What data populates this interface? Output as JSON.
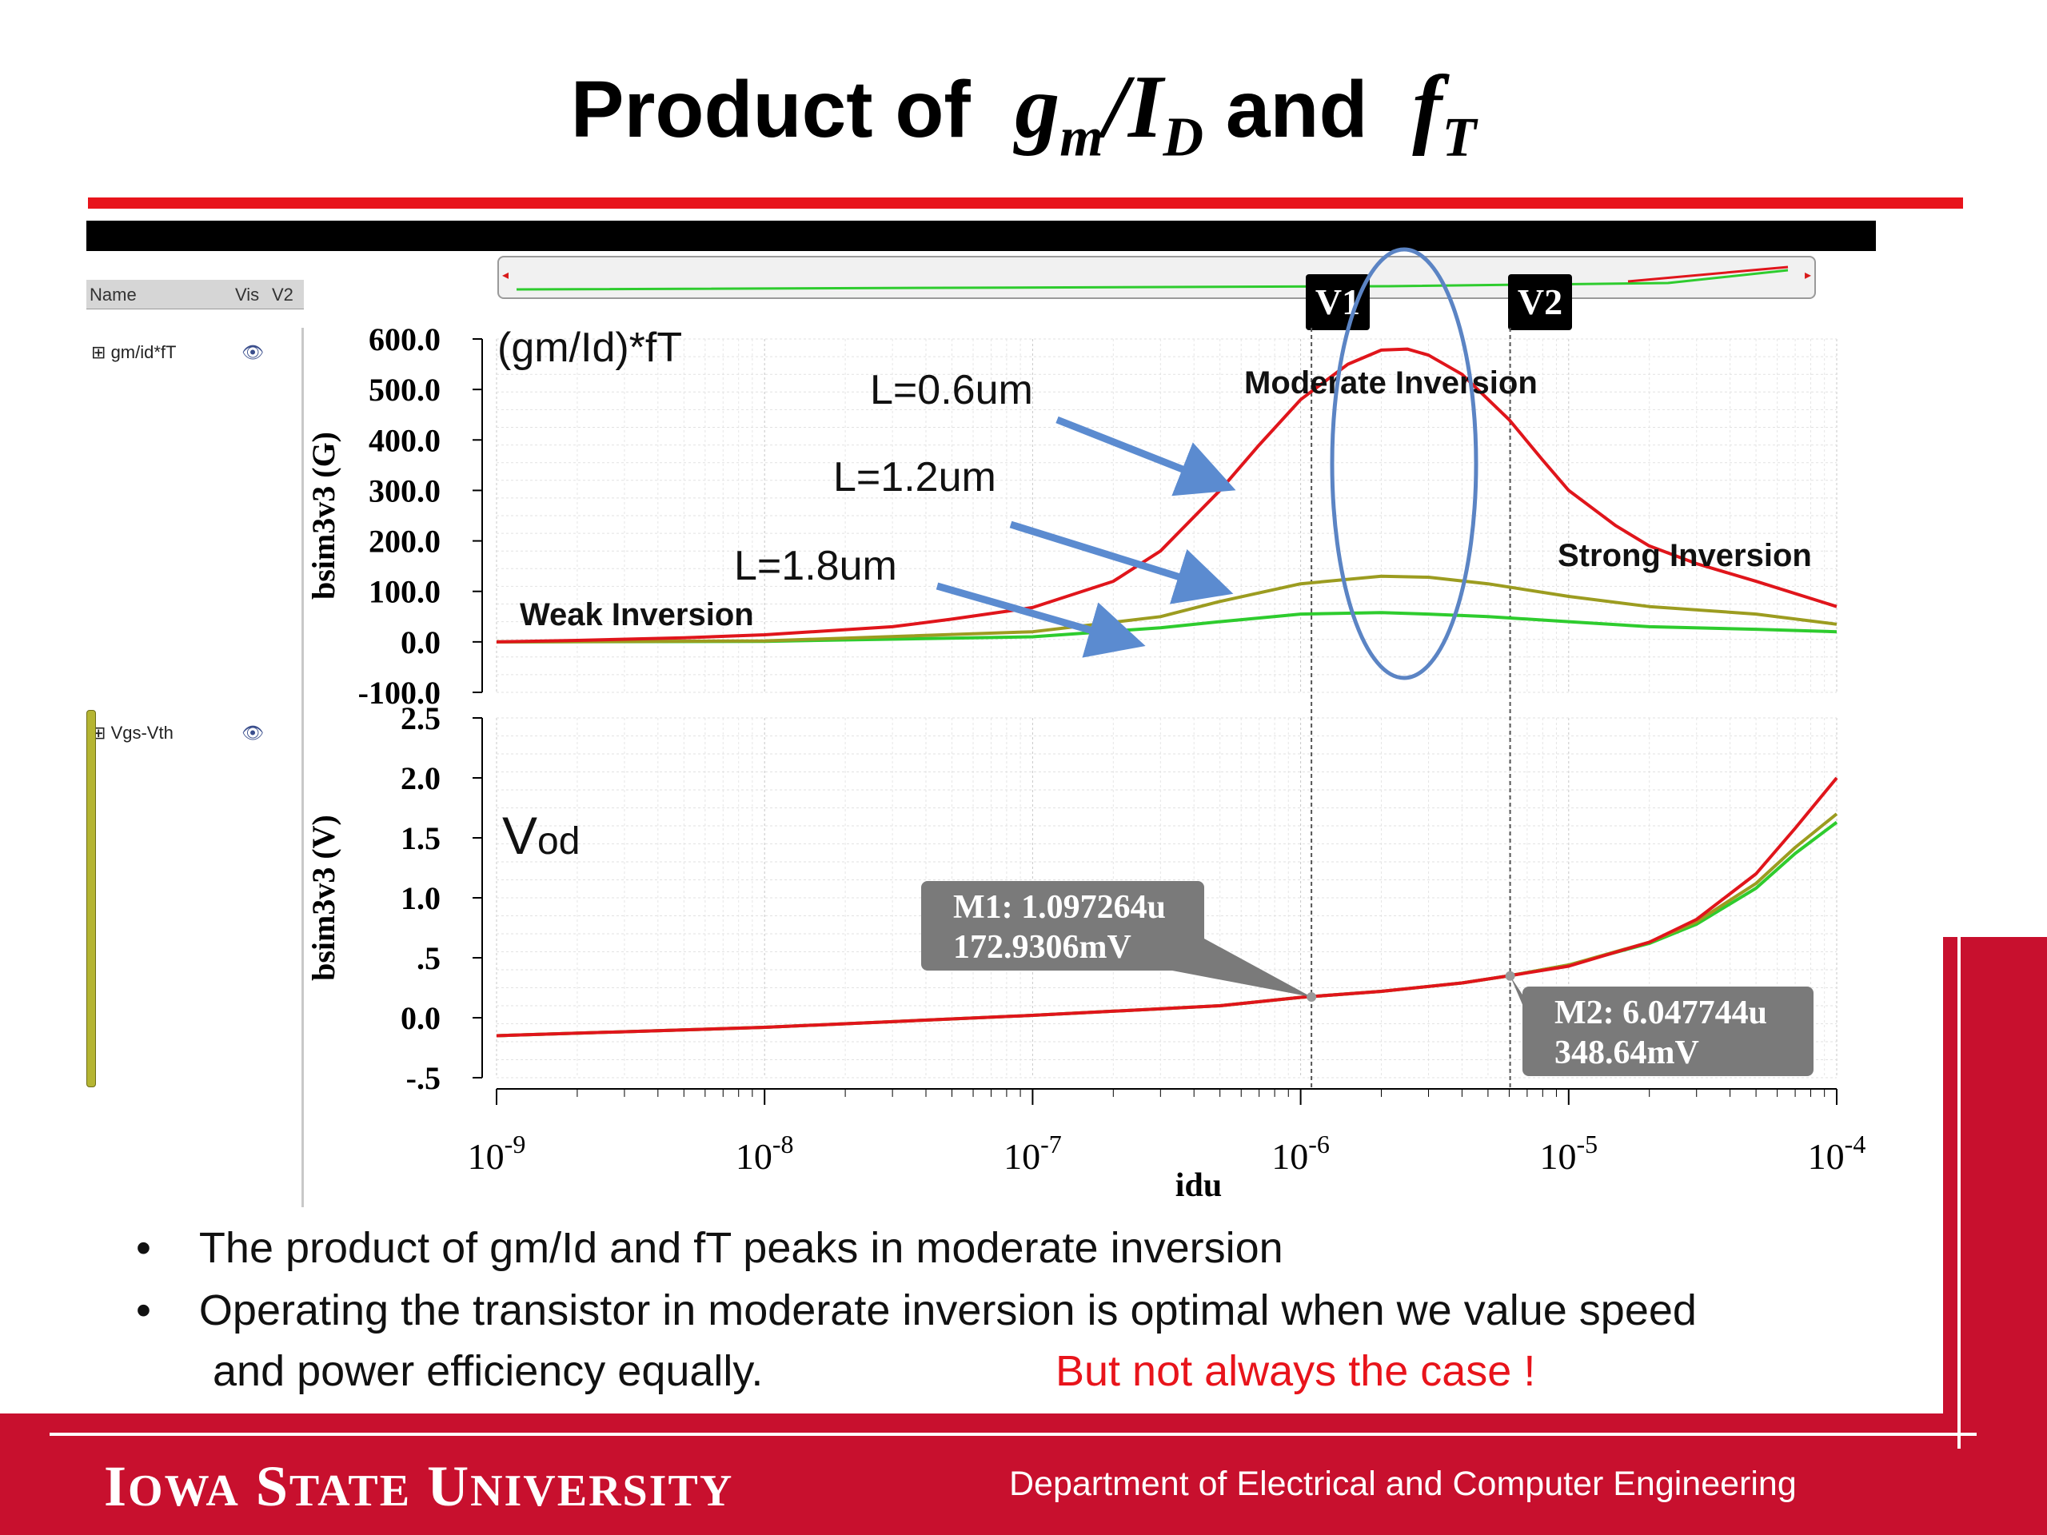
{
  "slide": {
    "title_prefix": "Product of",
    "title_gm_base": "g",
    "title_gm_sub": "m",
    "title_slash": "/",
    "title_id_base": "I",
    "title_id_sub": "D",
    "title_and": "and",
    "title_ft_base": "f",
    "title_ft_sub": "T"
  },
  "tool": {
    "header_name": "Name",
    "header_vis": "Vis",
    "header_v2": "V2",
    "signal_top": "gm/id*fT",
    "signal_bottom": "Vgs-Vth",
    "marker_v1": "V1",
    "marker_v2": "V2"
  },
  "chart_data": [
    {
      "type": "line",
      "title": "(gm/Id)*fT",
      "ylabel": "bsim3v3 (G)",
      "xlabel": "idu",
      "x_scale": "log",
      "xlim": [
        1e-09,
        0.0001
      ],
      "ylim": [
        -100,
        600
      ],
      "yticks": [
        "600.0",
        "500.0",
        "400.0",
        "300.0",
        "200.0",
        "100.0",
        "0.0",
        "-100.0"
      ],
      "ytick_values": [
        600,
        500,
        400,
        300,
        200,
        100,
        0,
        -100
      ],
      "grid": true,
      "series": [
        {
          "name": "L=0.6um",
          "color": "#e0151b",
          "x": [
            1e-09,
            2e-09,
            5e-09,
            1e-08,
            3e-08,
            5e-08,
            1e-07,
            2e-07,
            3e-07,
            5e-07,
            7e-07,
            1e-06,
            1.5e-06,
            2e-06,
            2.5e-06,
            3e-06,
            4e-06,
            6e-06,
            8e-06,
            1e-05,
            1.5e-05,
            2e-05,
            3e-05,
            5e-05,
            0.0001
          ],
          "y": [
            0,
            3,
            8,
            14,
            30,
            45,
            68,
            120,
            180,
            300,
            390,
            480,
            550,
            578,
            580,
            568,
            530,
            440,
            360,
            300,
            230,
            190,
            155,
            120,
            70
          ]
        },
        {
          "name": "L=1.2um",
          "color": "#9c9c20",
          "x": [
            1e-09,
            1e-08,
            1e-07,
            3e-07,
            5e-07,
            1e-06,
            2e-06,
            3e-06,
            5e-06,
            1e-05,
            2e-05,
            5e-05,
            0.0001
          ],
          "y": [
            0,
            2,
            20,
            50,
            80,
            115,
            130,
            128,
            115,
            90,
            70,
            55,
            35
          ]
        },
        {
          "name": "L=1.8um",
          "color": "#2ecc2e",
          "x": [
            1e-09,
            1e-08,
            1e-07,
            3e-07,
            5e-07,
            1e-06,
            2e-06,
            3e-06,
            5e-06,
            1e-05,
            2e-05,
            5e-05,
            0.0001
          ],
          "y": [
            0,
            1,
            10,
            28,
            40,
            55,
            58,
            55,
            50,
            40,
            30,
            25,
            20
          ]
        }
      ],
      "annotations": [
        "Weak Inversion",
        "Moderate Inversion",
        "Strong Inversion"
      ]
    },
    {
      "type": "line",
      "title": "V",
      "title_sub": "od",
      "ylabel": "bsim3v3 (V)",
      "xlabel": "idu",
      "x_scale": "log",
      "xlim": [
        1e-09,
        0.0001
      ],
      "ylim": [
        -0.5,
        2.5
      ],
      "yticks": [
        "2.5",
        "2.0",
        "1.5",
        "1.0",
        ".5",
        "0.0",
        "-.5"
      ],
      "ytick_values": [
        2.5,
        2.0,
        1.5,
        1.0,
        0.5,
        0.0,
        -0.5
      ],
      "xticks": [
        "10",
        "10",
        "10",
        "10",
        "10",
        "10"
      ],
      "xtick_exps": [
        "-9",
        "-8",
        "-7",
        "-6",
        "-5",
        "-4"
      ],
      "grid": true,
      "series": [
        {
          "name": "L=0.6um",
          "color": "#e0151b",
          "x": [
            1e-09,
            1e-08,
            1e-07,
            5e-07,
            1e-06,
            2e-06,
            4e-06,
            6e-06,
            1e-05,
            2e-05,
            3e-05,
            5e-05,
            7e-05,
            0.0001
          ],
          "y": [
            -0.15,
            -0.08,
            0.02,
            0.1,
            0.17,
            0.22,
            0.29,
            0.35,
            0.43,
            0.63,
            0.82,
            1.2,
            1.58,
            2.0
          ]
        },
        {
          "name": "L=1.2um",
          "color": "#9c9c20",
          "x": [
            1e-09,
            1e-08,
            1e-07,
            5e-07,
            1e-06,
            2e-06,
            4e-06,
            6e-06,
            1e-05,
            2e-05,
            3e-05,
            5e-05,
            7e-05,
            0.0001
          ],
          "y": [
            -0.15,
            -0.08,
            0.02,
            0.1,
            0.17,
            0.22,
            0.29,
            0.35,
            0.44,
            0.63,
            0.8,
            1.12,
            1.42,
            1.7
          ]
        },
        {
          "name": "L=1.8um",
          "color": "#2ecc2e",
          "x": [
            1e-09,
            1e-08,
            1e-07,
            5e-07,
            1e-06,
            2e-06,
            4e-06,
            6e-06,
            1e-05,
            2e-05,
            3e-05,
            5e-05,
            7e-05,
            0.0001
          ],
          "y": [
            -0.15,
            -0.08,
            0.02,
            0.1,
            0.17,
            0.22,
            0.29,
            0.35,
            0.44,
            0.62,
            0.78,
            1.08,
            1.37,
            1.63
          ]
        }
      ],
      "markers": [
        {
          "label_line1": "M1: 1.097264u",
          "label_line2": "172.9306mV",
          "x": 1.097264e-06,
          "y": 0.1729306
        },
        {
          "label_line1": "M2: 6.047744u",
          "label_line2": "348.64mV",
          "x": 6.047744e-06,
          "y": 0.34864
        }
      ]
    }
  ],
  "cursor_lines": {
    "v1_x": 1.097264e-06,
    "v2_x": 6.047744e-06
  },
  "labels": {
    "l06": "L=0.6um",
    "l12": "L=1.2um",
    "l18": "L=1.8um",
    "weak": "Weak Inversion",
    "moderate": "Moderate Inversion",
    "strong": "Strong Inversion"
  },
  "colors": {
    "accent_red": "#e8141b",
    "footer_red": "#c8102e",
    "ellipse_blue": "#5b84c4",
    "arrow_blue": "#5b8bd0",
    "marker_box": "#7a7a7a"
  },
  "bullets": {
    "b1": "The product of gm/Id and fT peaks in moderate inversion",
    "b2_line1": "Operating the transistor in moderate inversion is optimal when we value speed",
    "b2_line2": "and power efficiency equally.",
    "b2_note": "But not always the case !"
  },
  "footer": {
    "uni_i": "I",
    "uni_owa": "OWA",
    "uni_s": "S",
    "uni_tate": "TATE",
    "uni_u": "U",
    "uni_niversity": "NIVERSITY",
    "dept": "Department of Electrical and Computer Engineering"
  }
}
